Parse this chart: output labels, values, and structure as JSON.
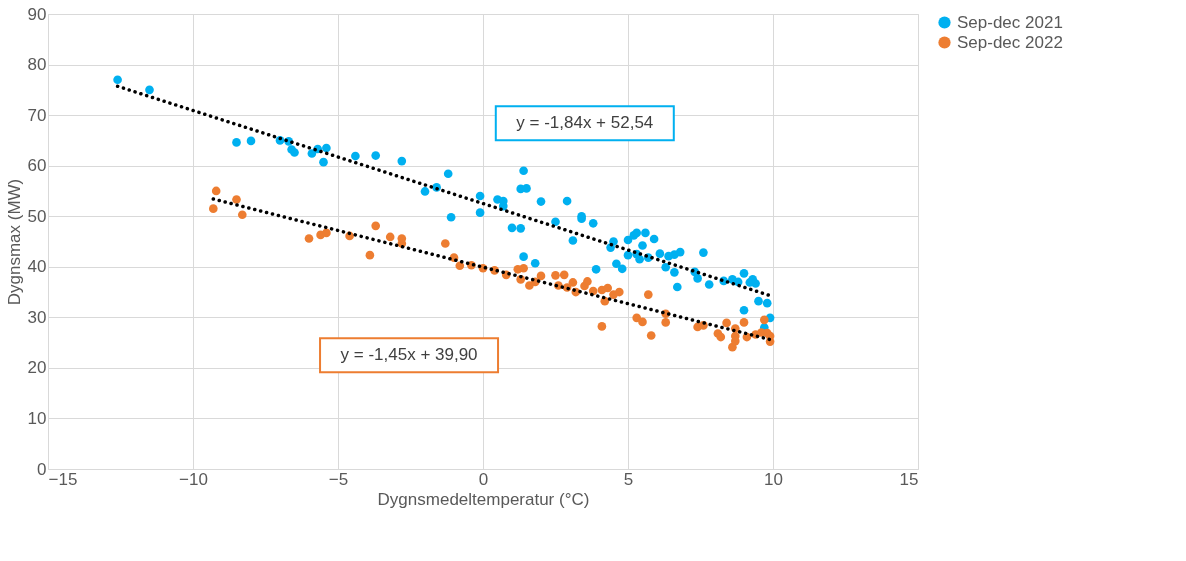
{
  "chart_data": {
    "type": "scatter",
    "xlabel": "Dygnsmedeltemperatur (°C)",
    "ylabel": "Dygnsmax (MW)",
    "xlim": [
      -15,
      15
    ],
    "xticks": [
      -15,
      -10,
      -5,
      0,
      5,
      10,
      15
    ],
    "ylim": [
      0,
      90
    ],
    "yticks": [
      0,
      10,
      20,
      30,
      40,
      50,
      60,
      70,
      80,
      90
    ],
    "grid": true,
    "legend": "right",
    "marker": "circle",
    "series": [
      {
        "name": "Sep-dec 2021",
        "color": "#00b0f0",
        "x": [
          -12.6,
          -11.5,
          -8.5,
          -8,
          -7,
          -6.7,
          -6.6,
          -6.5,
          -5.9,
          -5.7,
          -5.5,
          -5.4,
          -4.4,
          -3.7,
          -2.8,
          -2,
          -1.6,
          -1.2,
          -1.1,
          -0.1,
          -0.1,
          0.5,
          0.7,
          0.7,
          1,
          1.3,
          1.3,
          1.4,
          1.5,
          1.4,
          2,
          1.8,
          2.5,
          2.9,
          3.1,
          3.4,
          3.4,
          3.8,
          3.9,
          4.4,
          4.5,
          4.6,
          4.8,
          5,
          5,
          5.2,
          5.3,
          5.3,
          5.4,
          5.5,
          5.6,
          5.7,
          5.9,
          6.1,
          6.3,
          6.4,
          6.6,
          6.6,
          6.7,
          6.8,
          7.3,
          7.4,
          7.6,
          7.8,
          8.3,
          8.6,
          8.8,
          9,
          9,
          9.2,
          9.3,
          9.4,
          9.5,
          9.7,
          9.8,
          9.9
        ],
        "values": [
          77,
          75,
          64.6,
          64.9,
          65,
          64.8,
          63.2,
          62.6,
          62.4,
          63.3,
          60.7,
          63.5,
          61.9,
          62,
          60.9,
          54.9,
          55.7,
          58.4,
          49.8,
          54,
          50.7,
          53.3,
          53,
          52,
          47.7,
          47.6,
          55.4,
          59,
          55.5,
          42,
          52.9,
          40.7,
          48.9,
          53,
          45.2,
          49.5,
          50,
          48.6,
          39.5,
          43.8,
          45,
          40.6,
          39.6,
          45.3,
          42.3,
          46.2,
          46.7,
          42.5,
          41.5,
          44.2,
          46.7,
          41.8,
          45.5,
          42.6,
          39.9,
          42.1,
          42.4,
          38.9,
          36,
          42.9,
          39,
          37.7,
          42.8,
          36.5,
          37.2,
          37.5,
          37,
          38.7,
          31.4,
          36.9,
          37.5,
          36.7,
          33.2,
          28,
          32.8,
          29.9
        ]
      },
      {
        "name": "Sep-dec 2022",
        "color": "#ed7d31",
        "x": [
          -9.3,
          -9.2,
          -8.5,
          -8.3,
          -6,
          -5.6,
          -5.4,
          -4.6,
          -3.9,
          -3.7,
          -3.2,
          -2.8,
          -2.8,
          -1.3,
          -1,
          -0.8,
          -0.4,
          0,
          0.4,
          0.8,
          1.2,
          1.3,
          1.4,
          1.6,
          1.8,
          2,
          2.5,
          2.6,
          2.8,
          2.9,
          3.1,
          3.2,
          3.5,
          3.6,
          3.8,
          4.1,
          4.1,
          4.2,
          4.3,
          4.5,
          4.7,
          5.3,
          5.5,
          5.7,
          5.8,
          6.3,
          6.3,
          7.4,
          7.6,
          8.1,
          8.2,
          8.4,
          8.6,
          8.7,
          8.7,
          8.7,
          9,
          9.1,
          9.4,
          9.6,
          9.7,
          9.8,
          9.9,
          9.9
        ],
        "values": [
          51.5,
          55,
          53.3,
          50.3,
          45.6,
          46.3,
          46.7,
          46.1,
          42.3,
          48.1,
          45.9,
          45.6,
          44.6,
          44.6,
          41.8,
          40.2,
          40.3,
          39.7,
          39.3,
          38.4,
          39.5,
          37.5,
          39.7,
          36.3,
          37,
          38.2,
          38.3,
          36.3,
          38.4,
          35.9,
          36.9,
          35,
          36.2,
          37.1,
          35.2,
          28.2,
          35.4,
          33.2,
          35.8,
          34.5,
          35,
          29.9,
          29.1,
          34.5,
          26.4,
          29,
          30.7,
          28.1,
          28.4,
          26.8,
          26.1,
          28.9,
          24.1,
          26.3,
          27.8,
          25.3,
          29,
          26.1,
          26.6,
          27,
          29.5,
          26.9,
          25.2,
          26.3
        ]
      },
      {
        "type": "line",
        "color": "#000000",
        "line_style": "dotted",
        "marker": "none",
        "x": [
          -12.6,
          9.9
        ],
        "values": [
          75.7,
          34.3
        ]
      },
      {
        "type": "line",
        "color": "#000000",
        "line_style": "dotted",
        "marker": "none",
        "x": [
          -9.3,
          9.9
        ],
        "values": [
          53.4,
          25.6
        ]
      }
    ],
    "annotations": [
      "y = -1,84x + 52,54",
      "y = -1,45x + 39,90"
    ]
  }
}
